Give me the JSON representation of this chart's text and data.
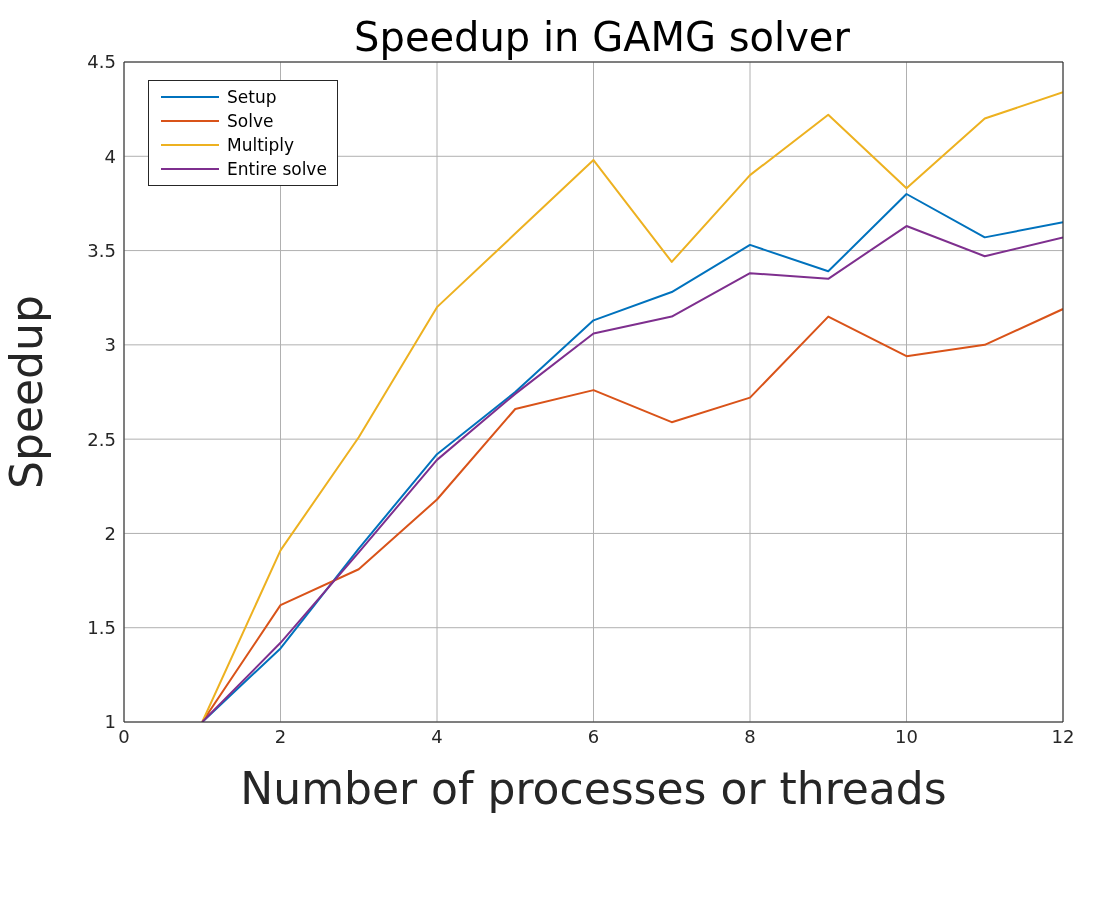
{
  "chart_data": {
    "type": "line",
    "title": "Speedup in GAMG solver",
    "xlabel": "Number of processes or threads",
    "ylabel": "Speedup",
    "x": [
      1,
      2,
      3,
      4,
      5,
      6,
      7,
      8,
      9,
      10,
      11,
      12
    ],
    "series": [
      {
        "name": "Setup",
        "color": "#0072bd",
        "values": [
          1,
          1.39,
          1.92,
          2.42,
          2.75,
          3.13,
          3.28,
          3.53,
          3.39,
          3.8,
          3.57,
          3.65
        ]
      },
      {
        "name": "Solve",
        "color": "#d95319",
        "values": [
          1,
          1.62,
          1.81,
          2.18,
          2.66,
          2.76,
          2.59,
          2.72,
          3.15,
          2.94,
          3.0,
          3.19
        ]
      },
      {
        "name": "Multiply",
        "color": "#edb120",
        "values": [
          1,
          1.91,
          2.51,
          3.2,
          3.59,
          3.98,
          3.44,
          3.9,
          4.22,
          3.83,
          4.2,
          4.34
        ]
      },
      {
        "name": "Entire solve",
        "color": "#7e2f8e",
        "values": [
          1,
          1.42,
          1.9,
          2.39,
          2.74,
          3.06,
          3.15,
          3.38,
          3.35,
          3.63,
          3.47,
          3.57
        ]
      }
    ],
    "xlim": [
      0,
      12
    ],
    "xticks": [
      0,
      2,
      4,
      6,
      8,
      10,
      12
    ],
    "ylim": [
      1,
      4.5
    ],
    "yticks": [
      1,
      1.5,
      2,
      2.5,
      3,
      3.5,
      4,
      4.5
    ],
    "grid": true,
    "legend": "top left",
    "marker": "none",
    "line_style": "solid"
  }
}
